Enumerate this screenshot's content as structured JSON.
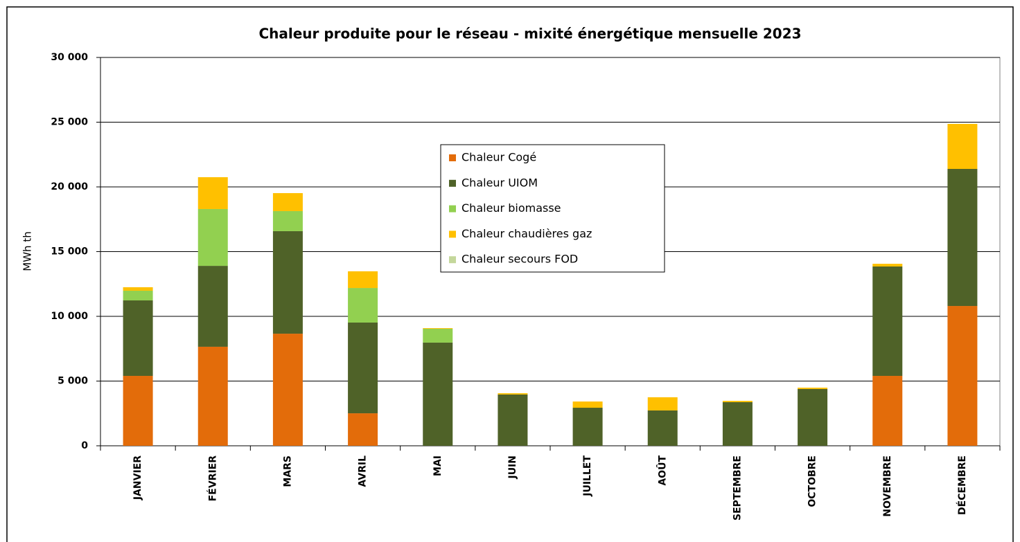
{
  "chart_data": {
    "type": "stacked_bar",
    "title": "Chaleur produite pour le réseau - mixité énergétique mensuelle 2023",
    "y_label": "MWh th",
    "categories": [
      "JANVIER",
      "FÉVRIER",
      "MARS",
      "AVRIL",
      "MAI",
      "JUIN",
      "JUILLET",
      "AOÛT",
      "SEPTEMBRE",
      "OCTOBRE",
      "NOVEMBRE",
      "DÉCEMBRE"
    ],
    "series": [
      {
        "name": "Chaleur Cogé",
        "color": "#e36c0a",
        "values": [
          5400,
          7650,
          8660,
          2510,
          0,
          0,
          0,
          0,
          0,
          0,
          5400,
          10800
        ]
      },
      {
        "name": "Chaleur UIOM",
        "color": "#4f6228",
        "values": [
          5830,
          6250,
          7920,
          7010,
          7970,
          3960,
          2940,
          2730,
          3370,
          4390,
          8450,
          10590
        ]
      },
      {
        "name": "Chaleur biomasse",
        "color": "#92d050",
        "values": [
          750,
          4390,
          1550,
          2670,
          1070,
          0,
          0,
          0,
          0,
          0,
          0,
          0
        ]
      },
      {
        "name": "Chaleur chaudières gaz",
        "color": "#ffc000",
        "values": [
          270,
          2460,
          1390,
          1290,
          50,
          100,
          480,
          1020,
          100,
          100,
          210,
          3480
        ]
      },
      {
        "name": "Chaleur secours FOD",
        "color": "#c4d79b",
        "values": [
          0,
          0,
          0,
          0,
          0,
          0,
          0,
          0,
          0,
          0,
          0,
          0
        ]
      }
    ],
    "ylim": [
      0,
      30000
    ],
    "yticks": [
      0,
      {
        "value": 5000,
        "label": "5 000"
      },
      {
        "value": 10000,
        "label": "10 000"
      },
      {
        "value": 15000,
        "label": "15 000"
      },
      {
        "value": 20000,
        "label": "20 000"
      },
      {
        "value": 25000,
        "label": "25 000"
      },
      {
        "value": 30000,
        "label": "30 000"
      }
    ],
    "grid": true,
    "legend": "center"
  }
}
